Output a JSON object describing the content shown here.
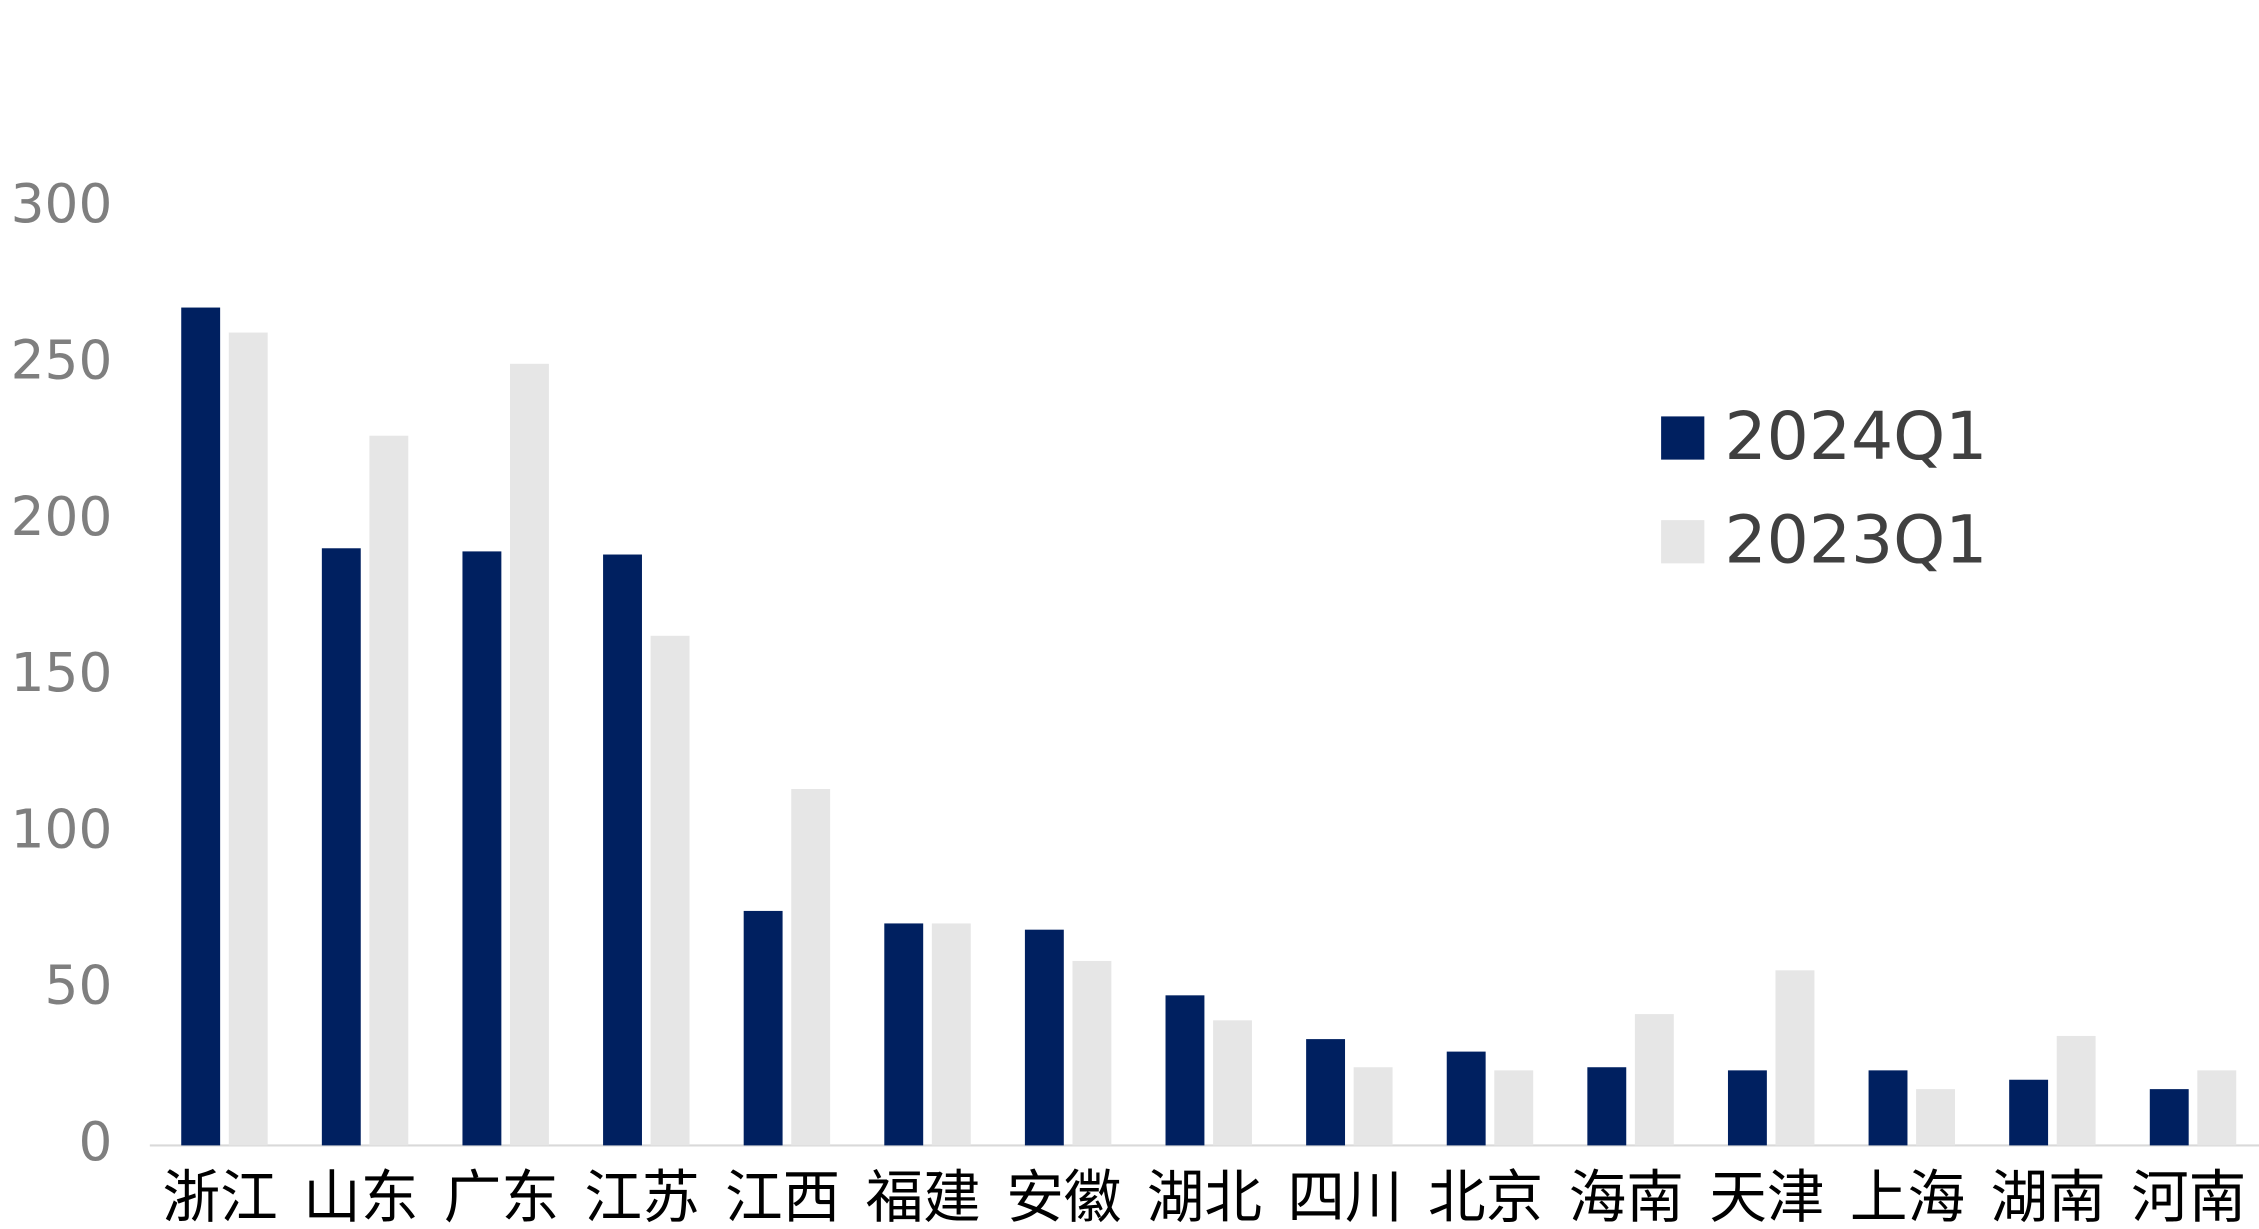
{
  "chart_data": {
    "type": "bar",
    "categories": [
      "浙江",
      "山东",
      "广东",
      "江苏",
      "江西",
      "福建",
      "安徽",
      "湖北",
      "四川",
      "北京",
      "海南",
      "天津",
      "上海",
      "湖南",
      "河南"
    ],
    "series": [
      {
        "name": "2024Q1",
        "color": "#002060",
        "values": [
          268,
          191,
          190,
          189,
          75,
          71,
          69,
          48,
          34,
          30,
          25,
          24,
          24,
          21,
          18
        ]
      },
      {
        "name": "2023Q1",
        "color": "#e6e6e6",
        "values": [
          260,
          227,
          250,
          163,
          114,
          71,
          59,
          40,
          25,
          24,
          42,
          56,
          18,
          35,
          24
        ]
      }
    ],
    "ylim": [
      0,
      300
    ],
    "yticks": [
      0,
      50,
      100,
      150,
      200,
      250,
      300
    ],
    "grid": false,
    "legend": "right"
  }
}
